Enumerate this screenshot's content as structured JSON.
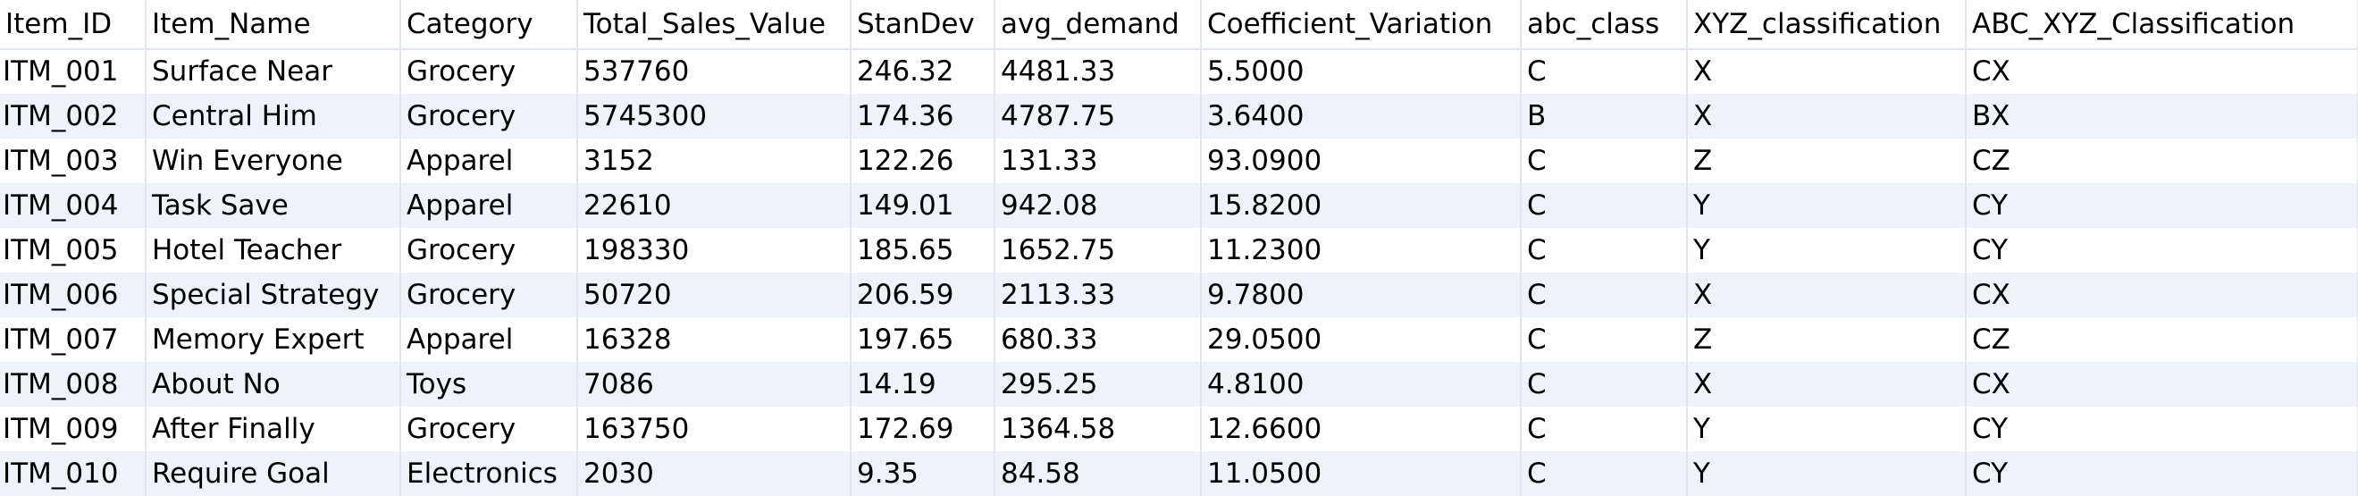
{
  "table": {
    "columns": [
      "Item_ID",
      "Item_Name",
      "Category",
      "Total_Sales_Value",
      "StanDev",
      "avg_demand",
      "Coefficient_Variation",
      "abc_class",
      "XYZ_classification",
      "ABC_XYZ_Classification"
    ],
    "rows": [
      [
        "ITM_001",
        "Surface Near",
        "Grocery",
        "537760",
        "246.32",
        "4481.33",
        "5.5000",
        "C",
        "X",
        "CX"
      ],
      [
        "ITM_002",
        "Central Him",
        "Grocery",
        "5745300",
        "174.36",
        "4787.75",
        "3.6400",
        "B",
        "X",
        "BX"
      ],
      [
        "ITM_003",
        "Win Everyone",
        "Apparel",
        "3152",
        "122.26",
        "131.33",
        "93.0900",
        "C",
        "Z",
        "CZ"
      ],
      [
        "ITM_004",
        "Task Save",
        "Apparel",
        "22610",
        "149.01",
        "942.08",
        "15.8200",
        "C",
        "Y",
        "CY"
      ],
      [
        "ITM_005",
        "Hotel Teacher",
        "Grocery",
        "198330",
        "185.65",
        "1652.75",
        "11.2300",
        "C",
        "Y",
        "CY"
      ],
      [
        "ITM_006",
        "Special Strategy",
        "Grocery",
        "50720",
        "206.59",
        "2113.33",
        "9.7800",
        "C",
        "X",
        "CX"
      ],
      [
        "ITM_007",
        "Memory Expert",
        "Apparel",
        "16328",
        "197.65",
        "680.33",
        "29.0500",
        "C",
        "Z",
        "CZ"
      ],
      [
        "ITM_008",
        "About No",
        "Toys",
        "7086",
        "14.19",
        "295.25",
        "4.8100",
        "C",
        "X",
        "CX"
      ],
      [
        "ITM_009",
        "After Finally",
        "Grocery",
        "163750",
        "172.69",
        "1364.58",
        "12.6600",
        "C",
        "Y",
        "CY"
      ],
      [
        "ITM_010",
        "Require Goal",
        "Electronics",
        "2030",
        "9.35",
        "84.58",
        "11.0500",
        "C",
        "Y",
        "CY"
      ]
    ]
  }
}
